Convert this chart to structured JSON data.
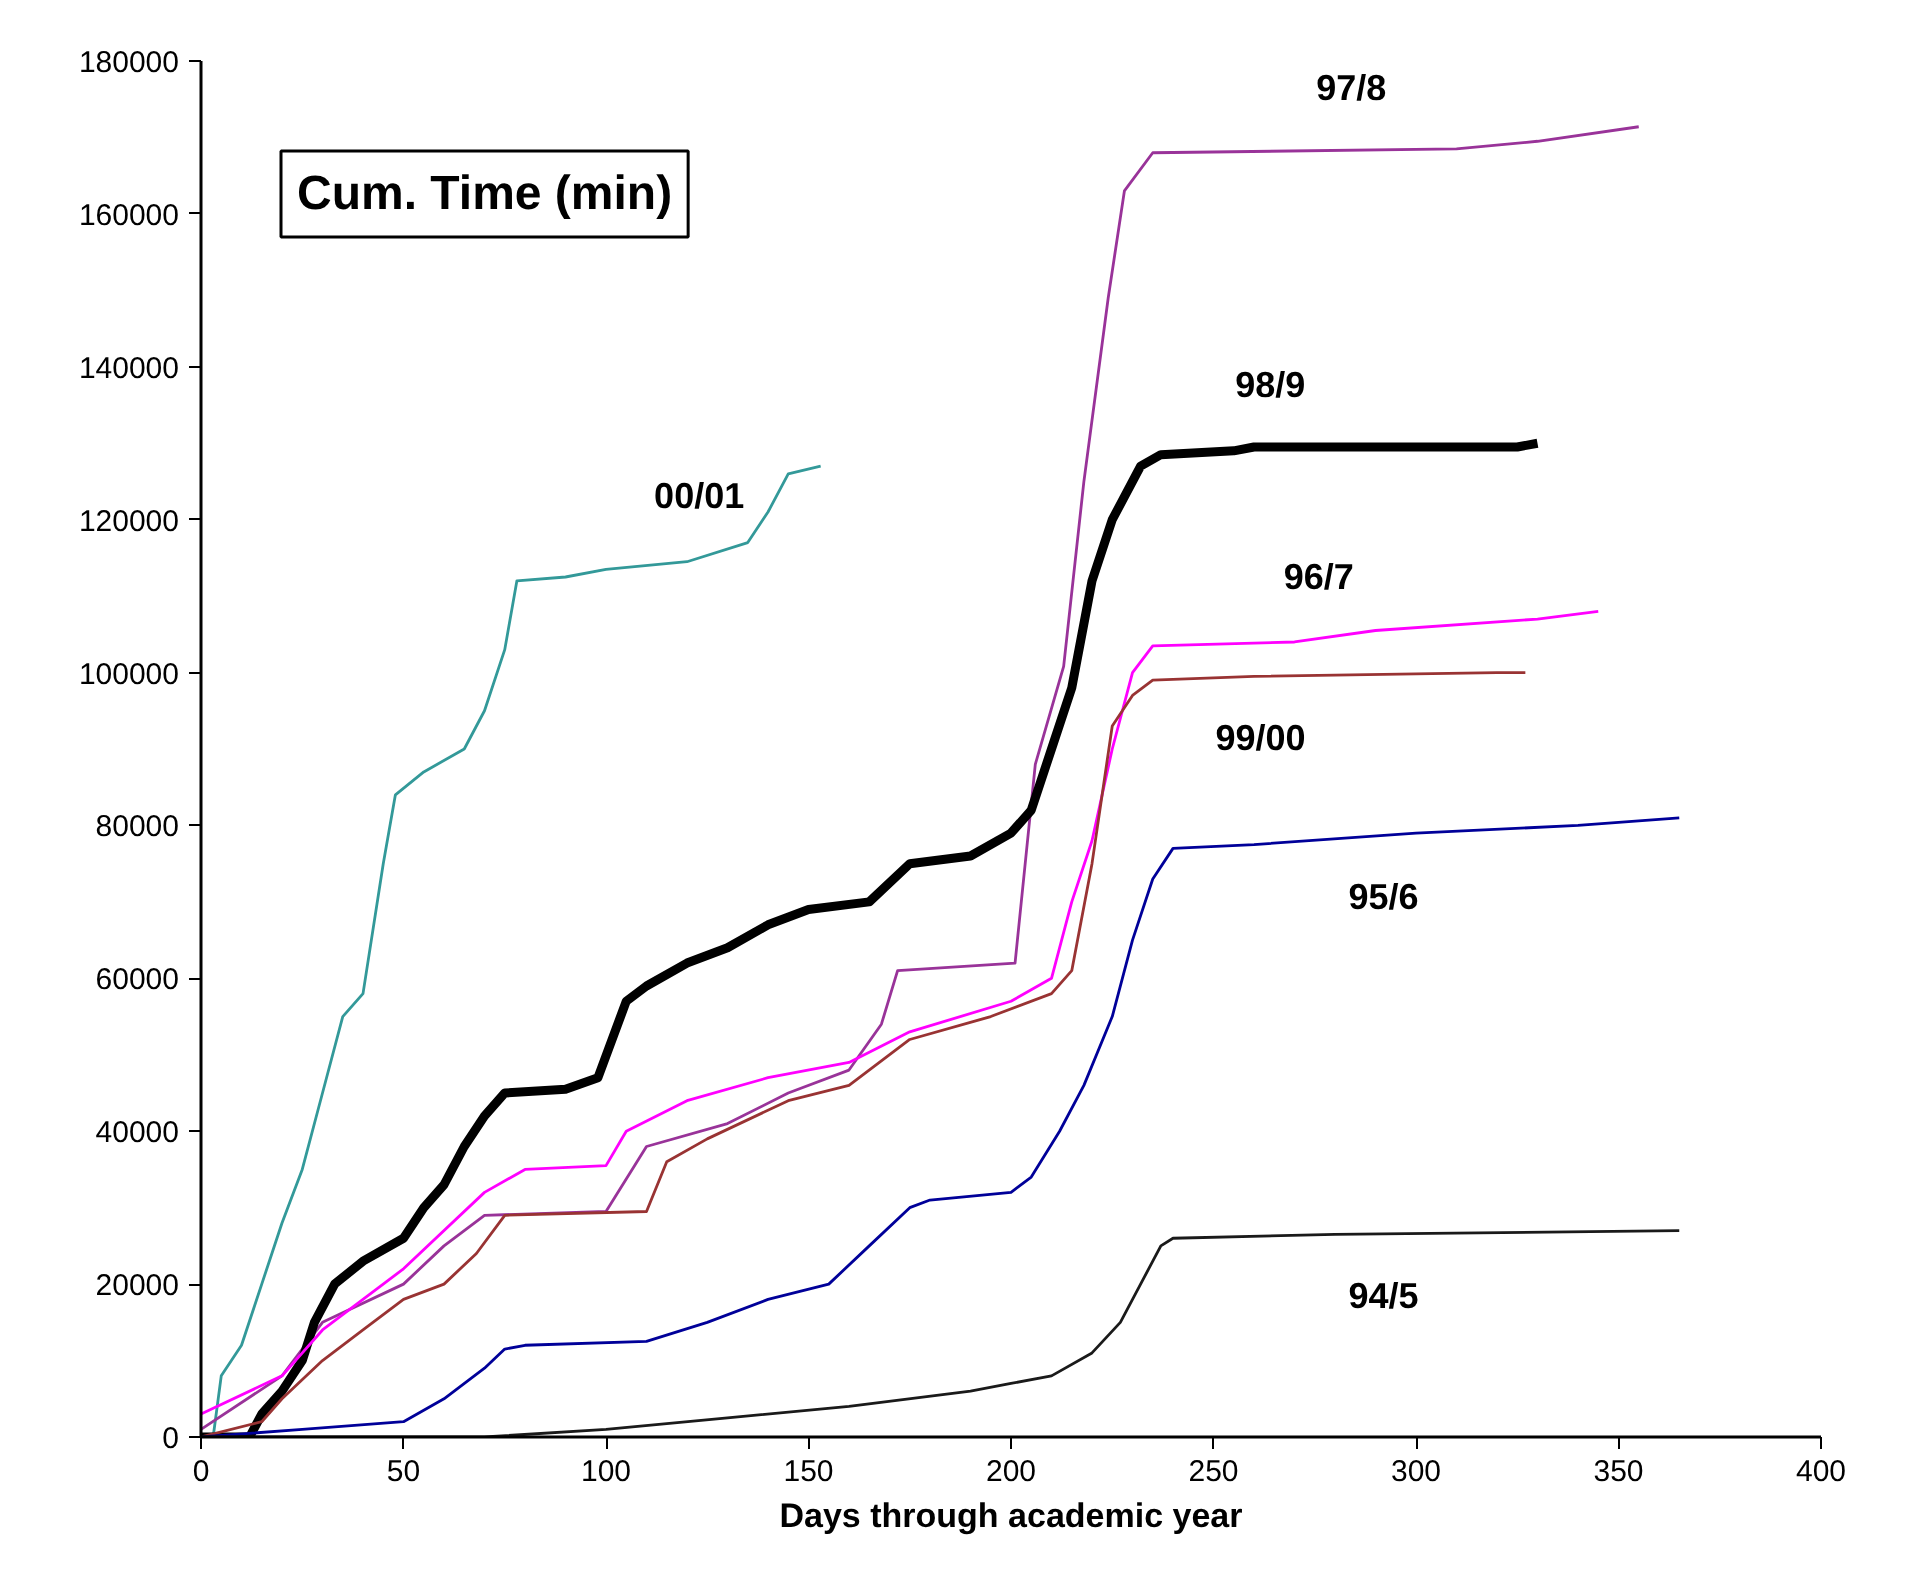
{
  "chart_data": {
    "type": "line",
    "title": "Cum. Time (min)",
    "xlabel": "Days through academic year",
    "xlim": [
      0,
      400
    ],
    "xticks": [
      0,
      50,
      100,
      150,
      200,
      250,
      300,
      350,
      400
    ],
    "ylim": [
      0,
      180000
    ],
    "yticks": [
      0,
      20000,
      40000,
      60000,
      80000,
      100000,
      120000,
      140000,
      160000,
      180000
    ],
    "grid": false,
    "marker": "none",
    "line_style": "solid",
    "series": [
      {
        "name": "00/01",
        "color": "#339999",
        "x": [
          3,
          5,
          10,
          15,
          20,
          25,
          30,
          35,
          40,
          45,
          48,
          55,
          65,
          70,
          75,
          78,
          90,
          100,
          120,
          135,
          140,
          145,
          153
        ],
        "values": [
          0,
          8000,
          12000,
          20000,
          28000,
          35000,
          45000,
          55000,
          58000,
          75000,
          84000,
          87000,
          90000,
          95000,
          103000,
          112000,
          112500,
          113500,
          114500,
          117000,
          121000,
          126000,
          127000
        ]
      },
      {
        "name": "97/8",
        "color": "#993399",
        "x": [
          0,
          20,
          30,
          50,
          60,
          70,
          100,
          110,
          130,
          145,
          160,
          168,
          172,
          201,
          206,
          213,
          218,
          224,
          228,
          235,
          310,
          330,
          355
        ],
        "values": [
          1000,
          8000,
          15000,
          20000,
          25000,
          29000,
          29500,
          38000,
          41000,
          45000,
          48000,
          54000,
          61000,
          62000,
          88000,
          100800,
          125000,
          149000,
          163000,
          168000,
          168500,
          169500,
          171400
        ]
      },
      {
        "name": "98/9",
        "color": "#000000",
        "x": [
          0,
          12,
          15,
          20,
          25,
          28,
          33,
          40,
          50,
          55,
          60,
          65,
          70,
          75,
          90,
          98,
          105,
          110,
          120,
          130,
          140,
          150,
          165,
          175,
          190,
          200,
          205,
          210,
          215,
          220,
          225,
          232,
          237,
          255,
          260,
          325,
          330
        ],
        "values": [
          0,
          0,
          3000,
          6000,
          10000,
          15000,
          20000,
          23000,
          26000,
          30000,
          33000,
          38000,
          42000,
          45000,
          45500,
          47000,
          57000,
          59000,
          62000,
          64000,
          67000,
          69000,
          70000,
          75000,
          76000,
          79000,
          82000,
          90000,
          98000,
          112000,
          120000,
          127000,
          128500,
          129000,
          129500,
          129500,
          130000
        ]
      },
      {
        "name": "96/7",
        "color": "#ff00ff",
        "x": [
          0,
          20,
          30,
          50,
          70,
          80,
          100,
          105,
          120,
          140,
          160,
          175,
          200,
          210,
          215,
          220,
          225,
          230,
          235,
          270,
          290,
          330,
          345
        ],
        "values": [
          3000,
          8000,
          14000,
          22000,
          32000,
          35000,
          35500,
          40000,
          44000,
          47000,
          49000,
          53000,
          57000,
          60000,
          70000,
          78000,
          90000,
          100000,
          103500,
          104000,
          105500,
          107000,
          108000
        ]
      },
      {
        "name": "99/00",
        "color": "#993333",
        "x": [
          0,
          15,
          20,
          30,
          40,
          50,
          60,
          68,
          75,
          110,
          115,
          125,
          145,
          160,
          175,
          195,
          210,
          215,
          220,
          225,
          230,
          235,
          260,
          320,
          327
        ],
        "values": [
          0,
          2000,
          5000,
          10000,
          14000,
          18000,
          20000,
          24000,
          29000,
          29500,
          36000,
          39000,
          44000,
          46000,
          52000,
          55000,
          58000,
          61000,
          75000,
          93000,
          97000,
          99000,
          99500,
          100000,
          100000
        ]
      },
      {
        "name": "95/6",
        "color": "#000099",
        "x": [
          0,
          25,
          50,
          60,
          70,
          75,
          80,
          110,
          125,
          140,
          155,
          165,
          175,
          180,
          200,
          205,
          212,
          218,
          225,
          230,
          235,
          240,
          260,
          300,
          340,
          365
        ],
        "values": [
          0,
          1000,
          2000,
          5000,
          9000,
          11500,
          12000,
          12500,
          15000,
          18000,
          20000,
          25000,
          30000,
          31000,
          32000,
          34000,
          40000,
          46000,
          55000,
          65000,
          73000,
          77000,
          77500,
          79000,
          80000,
          81000
        ]
      },
      {
        "name": "94/5",
        "color": "#1a1a1a",
        "x": [
          0,
          70,
          100,
          130,
          160,
          190,
          200,
          210,
          220,
          227,
          232,
          237,
          240,
          280,
          365
        ],
        "values": [
          0,
          0,
          1000,
          2500,
          4000,
          6000,
          7000,
          8000,
          11000,
          15000,
          20000,
          25000,
          26000,
          26500,
          27000
        ]
      }
    ]
  }
}
